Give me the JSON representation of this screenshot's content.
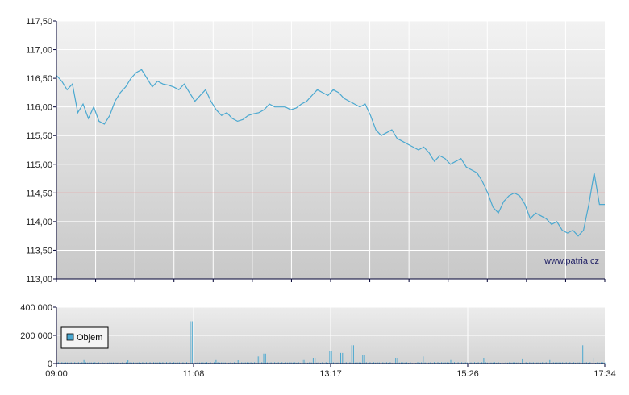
{
  "chart_data": [
    {
      "type": "line",
      "title": "",
      "xlabel": "",
      "ylabel": "",
      "ylim": [
        113.0,
        117.5
      ],
      "yticks": [
        "113,00",
        "113,50",
        "114,00",
        "114,50",
        "115,00",
        "115,50",
        "116,00",
        "116,50",
        "117,00",
        "117,50"
      ],
      "xticks": [
        "09:00",
        "11:08",
        "13:17",
        "15:26",
        "17:34"
      ],
      "grid": true,
      "reference_line": {
        "value": 114.5,
        "color": "#e04040"
      },
      "line_color": "#4aa8d0",
      "watermark": "www.patria.cz",
      "series": [
        {
          "values": [
            116.55,
            116.45,
            116.3,
            116.4,
            115.9,
            116.05,
            115.8,
            116.0,
            115.75,
            115.7,
            115.85,
            116.1,
            116.25,
            116.35,
            116.5,
            116.6,
            116.65,
            116.5,
            116.35,
            116.45,
            116.4,
            116.38,
            116.35,
            116.3,
            116.4,
            116.25,
            116.1,
            116.2,
            116.3,
            116.1,
            115.95,
            115.85,
            115.9,
            115.8,
            115.75,
            115.78,
            115.85,
            115.88,
            115.9,
            115.95,
            116.05,
            116.0,
            116.0,
            116.0,
            115.95,
            115.98,
            116.05,
            116.1,
            116.2,
            116.3,
            116.25,
            116.2,
            116.3,
            116.25,
            116.15,
            116.1,
            116.05,
            116.0,
            116.05,
            115.85,
            115.6,
            115.5,
            115.55,
            115.6,
            115.45,
            115.4,
            115.35,
            115.3,
            115.25,
            115.3,
            115.2,
            115.05,
            115.15,
            115.1,
            115.0,
            115.05,
            115.1,
            114.95,
            114.9,
            114.85,
            114.7,
            114.5,
            114.25,
            114.15,
            114.35,
            114.45,
            114.5,
            114.45,
            114.3,
            114.05,
            114.15,
            114.1,
            114.05,
            113.95,
            114.0,
            113.85,
            113.8,
            113.85,
            113.75,
            113.85,
            114.3,
            114.85,
            114.3,
            114.3
          ]
        }
      ]
    },
    {
      "type": "bar",
      "title": "",
      "xlabel": "",
      "ylabel": "",
      "ylim": [
        0,
        400000
      ],
      "yticks": [
        "0",
        "200 000",
        "400 000"
      ],
      "xticks": [
        "09:00",
        "11:08",
        "13:17",
        "15:26",
        "17:34"
      ],
      "grid": true,
      "legend": {
        "label": "Objem",
        "placement": "left"
      },
      "bar_color": "#4aa8d0",
      "baseline": 10000,
      "peaks": [
        {
          "position": 0.05,
          "value": 30000
        },
        {
          "position": 0.13,
          "value": 25000
        },
        {
          "position": 0.246,
          "value": 300000
        },
        {
          "position": 0.29,
          "value": 30000
        },
        {
          "position": 0.33,
          "value": 25000
        },
        {
          "position": 0.37,
          "value": 50000
        },
        {
          "position": 0.38,
          "value": 70000
        },
        {
          "position": 0.45,
          "value": 30000
        },
        {
          "position": 0.47,
          "value": 40000
        },
        {
          "position": 0.5,
          "value": 90000
        },
        {
          "position": 0.52,
          "value": 75000
        },
        {
          "position": 0.54,
          "value": 130000
        },
        {
          "position": 0.56,
          "value": 60000
        },
        {
          "position": 0.62,
          "value": 40000
        },
        {
          "position": 0.67,
          "value": 50000
        },
        {
          "position": 0.72,
          "value": 30000
        },
        {
          "position": 0.78,
          "value": 40000
        },
        {
          "position": 0.85,
          "value": 35000
        },
        {
          "position": 0.9,
          "value": 30000
        },
        {
          "position": 0.96,
          "value": 130000
        },
        {
          "position": 0.98,
          "value": 40000
        }
      ]
    }
  ]
}
